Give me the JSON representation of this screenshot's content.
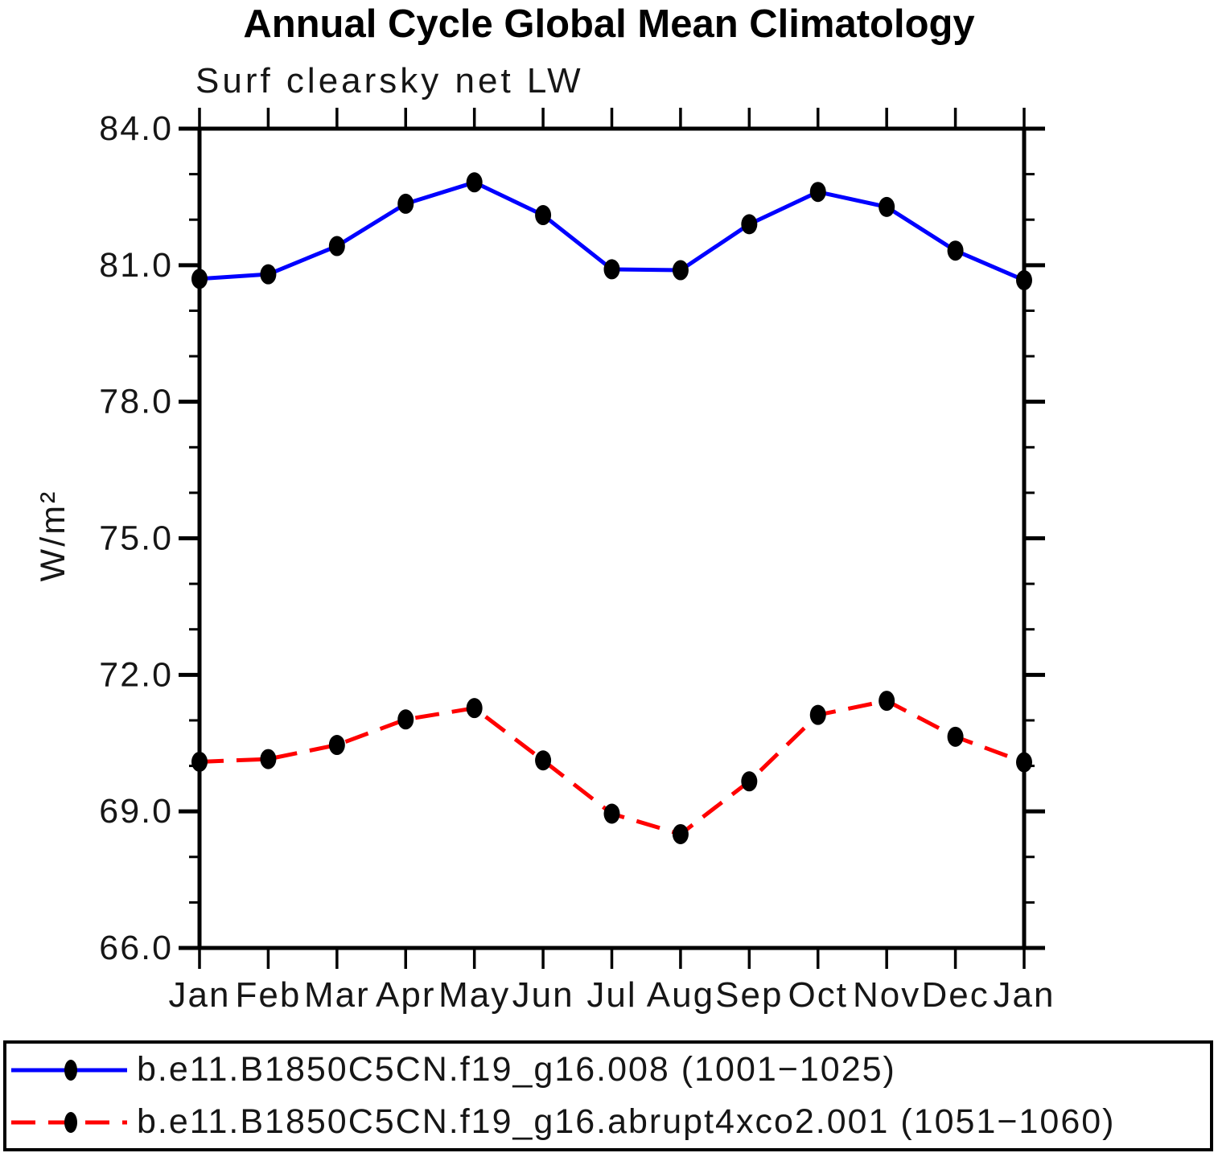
{
  "title": "Annual Cycle Global Mean Climatology",
  "subtitle": "Surf clearsky net LW",
  "chart_data": {
    "type": "line",
    "title": "Annual Cycle Global Mean Climatology",
    "subtitle": "Surf clearsky net LW",
    "xlabel": "",
    "ylabel": "W/m²",
    "categories": [
      "Jan",
      "Feb",
      "Mar",
      "Apr",
      "May",
      "Jun",
      "Jul",
      "Aug",
      "Sep",
      "Oct",
      "Nov",
      "Dec",
      "Jan"
    ],
    "ylim": [
      66.0,
      84.0
    ],
    "yticks": [
      66.0,
      69.0,
      72.0,
      75.0,
      78.0,
      81.0,
      84.0
    ],
    "ytick_labels": [
      "66.0",
      "69.0",
      "72.0",
      "75.0",
      "78.0",
      "81.0",
      "84.0"
    ],
    "minor_tick_interval": 1.0,
    "grid": false,
    "legend_position": "bottom",
    "axis_color": "#000000",
    "marker_color": "#000000",
    "series": [
      {
        "name": "b.e11.B1850C5CN.f19_g16.008 (1001−1025)",
        "color": "#0000ff",
        "line_style": "solid",
        "marker": "filled-circle",
        "values": [
          80.7,
          80.8,
          81.42,
          82.35,
          82.82,
          82.1,
          80.91,
          80.89,
          81.9,
          82.61,
          82.28,
          81.32,
          80.67
        ]
      },
      {
        "name": "b.e11.B1850C5CN.f19_g16.abrupt4xco2.001 (1051−1060)",
        "color": "#ff0000",
        "line_style": "dashed",
        "marker": "filled-circle",
        "values": [
          70.09,
          70.15,
          70.46,
          71.02,
          71.27,
          70.12,
          68.95,
          68.5,
          69.66,
          71.12,
          71.43,
          70.64,
          70.08
        ]
      }
    ]
  }
}
